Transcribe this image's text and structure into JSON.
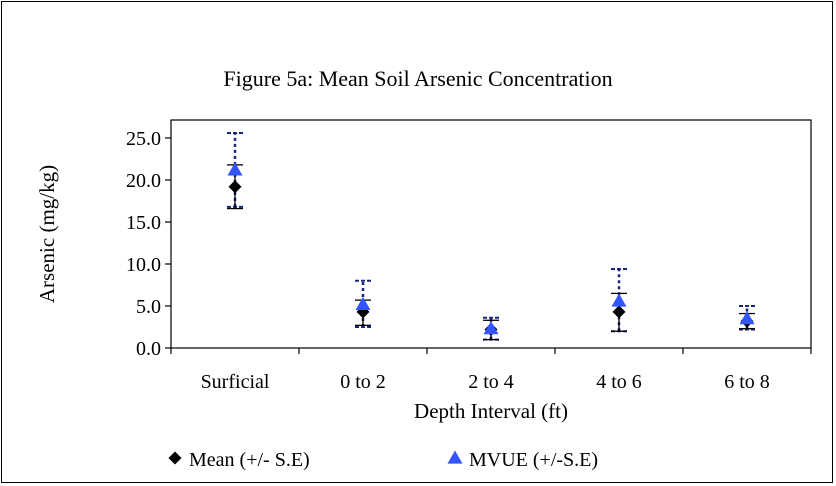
{
  "chart_data": {
    "type": "scatter",
    "title": "Figure 5a: Mean Soil Arsenic Concentration",
    "xlabel": "Depth Interval (ft)",
    "ylabel": "Arsenic (mg/kg)",
    "categories": [
      "Surficial",
      "0 to 2",
      "2 to 4",
      "4 to 6",
      "6 to 8"
    ],
    "ylim": [
      0,
      25
    ],
    "yticks": [
      "0.0",
      "5.0",
      "10.0",
      "15.0",
      "20.0",
      "25.0"
    ],
    "grid": false,
    "legend_position": "bottom",
    "series": [
      {
        "name": "Mean (+/- S.E)",
        "marker": "diamond",
        "color": "#000000",
        "values": [
          19.2,
          4.3,
          2.2,
          4.3,
          3.2
        ],
        "err_low": [
          16.6,
          2.7,
          1.0,
          2.0,
          2.3
        ],
        "err_high": [
          21.8,
          5.7,
          3.3,
          6.5,
          4.1
        ]
      },
      {
        "name": "MVUE (+/-S.E)",
        "marker": "triangle",
        "color": "#3355ff",
        "values": [
          21.2,
          5.2,
          2.3,
          5.6,
          3.5
        ],
        "err_low": [
          16.8,
          2.5,
          1.0,
          2.0,
          2.2
        ],
        "err_high": [
          25.6,
          8.0,
          3.6,
          9.4,
          5.0
        ]
      }
    ]
  }
}
